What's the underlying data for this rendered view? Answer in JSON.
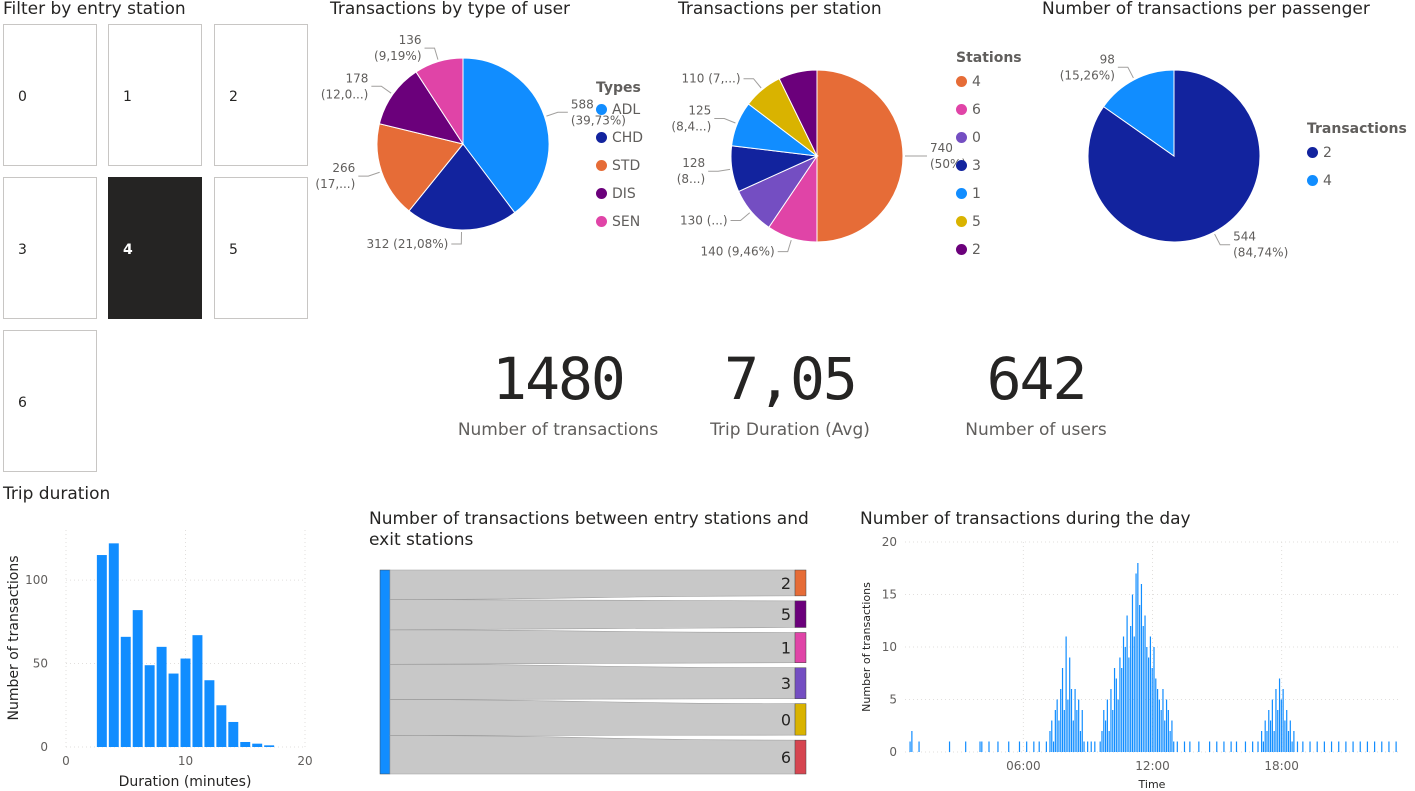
{
  "filter": {
    "title": "Filter by entry station",
    "tiles": [
      "0",
      "1",
      "2",
      "3",
      "4",
      "5",
      "6"
    ],
    "selected": "4"
  },
  "user_type_chart": {
    "title": "Transactions by type of user",
    "legend_title": "Types",
    "legend": [
      "ADL",
      "CHD",
      "STD",
      "DIS",
      "SEN"
    ],
    "slice_labels": [
      [
        "588",
        "(39,73%)"
      ],
      [
        "312 (21,08%)"
      ],
      [
        "266",
        "(17,...)"
      ],
      [
        "178",
        "(12,0...)"
      ],
      [
        "136",
        "(9,19%)"
      ]
    ]
  },
  "station_chart": {
    "title": "Transactions per station",
    "legend_title": "Stations",
    "legend": [
      "4",
      "6",
      "0",
      "3",
      "1",
      "5",
      "2"
    ],
    "slice_labels": [
      [
        "740",
        "(50%)"
      ],
      [
        "140 (9,46%)"
      ],
      [
        "130 (...)"
      ],
      [
        "128",
        "(8...)"
      ],
      [
        "125",
        "(8,4...)"
      ],
      [
        "110 (7,...)"
      ]
    ]
  },
  "passenger_chart": {
    "title": "Number of transactions per passenger",
    "legend_title": "Transactions",
    "legend": [
      "2",
      "4"
    ],
    "slice_labels": [
      [
        "544",
        "(84,74%)"
      ],
      [
        "98",
        "(15,26%)"
      ]
    ]
  },
  "kpis": [
    {
      "value": "1480",
      "label": "Number of transactions"
    },
    {
      "value": "7,05",
      "label": "Trip Duration (Avg)"
    },
    {
      "value": "642",
      "label": "Number of users"
    }
  ],
  "trip_chart": {
    "title": "Trip duration",
    "ylabel": "Number of transactions",
    "xlabel": "Duration (minutes)",
    "yticks": [
      "0",
      "50",
      "100"
    ],
    "xticks": [
      "0",
      "10",
      "20"
    ]
  },
  "sankey": {
    "title_line1": "Number of transactions between entry stations and",
    "title_line2": "exit stations",
    "source": "4",
    "targets": [
      "2",
      "5",
      "1",
      "3",
      "0",
      "6"
    ]
  },
  "day_chart": {
    "title": "Number of transactions during the day",
    "ylabel": "Number of transactions",
    "xlabel": "Time",
    "yticks": [
      "0",
      "5",
      "10",
      "15",
      "20"
    ],
    "xticks": [
      "06:00",
      "12:00",
      "18:00"
    ]
  },
  "colors": {
    "adl": "#118DFF",
    "chd": "#12239E",
    "std": "#E66C37",
    "dis": "#6B007B",
    "sen": "#E044A7",
    "st4": "#E66C37",
    "st6": "#E044A7",
    "st0": "#744EC2",
    "st3": "#12239E",
    "st1": "#118DFF",
    "st5": "#D9B300",
    "st2": "#6B007B",
    "bar": "#118DFF",
    "link": "#c8c8c8",
    "tile_selected": "#252423"
  },
  "chart_data": [
    {
      "type": "pie",
      "title": "Transactions by type of user",
      "categories": [
        "ADL",
        "CHD",
        "STD",
        "DIS",
        "SEN"
      ],
      "values": [
        588,
        312,
        266,
        178,
        136
      ]
    },
    {
      "type": "pie",
      "title": "Transactions per station",
      "categories": [
        "4",
        "6",
        "0",
        "3",
        "1",
        "5",
        "2"
      ],
      "values": [
        740,
        140,
        130,
        128,
        125,
        110,
        107
      ]
    },
    {
      "type": "pie",
      "title": "Number of transactions per passenger",
      "categories": [
        "2",
        "4"
      ],
      "values": [
        544,
        98
      ]
    },
    {
      "type": "bar",
      "title": "Trip duration",
      "xlabel": "Duration (minutes)",
      "ylabel": "Number of transactions",
      "x": [
        3,
        4,
        5,
        6,
        7,
        8,
        9,
        10,
        11,
        12,
        13,
        14,
        15,
        16,
        17
      ],
      "values": [
        115,
        122,
        66,
        82,
        49,
        60,
        44,
        53,
        67,
        40,
        25,
        15,
        3,
        2,
        1
      ],
      "xlim": [
        0,
        20
      ],
      "ylim": [
        0,
        130
      ]
    },
    {
      "type": "sankey",
      "title": "Number of transactions between entry stations and exit stations",
      "source": "4",
      "targets": [
        "2",
        "5",
        "1",
        "3",
        "0",
        "6"
      ],
      "values": [
        107,
        110,
        125,
        128,
        130,
        140
      ]
    },
    {
      "type": "bar",
      "title": "Number of transactions during the day",
      "xlabel": "Time",
      "ylabel": "Number of transactions",
      "ylim": [
        0,
        20
      ],
      "xlim": [
        "00:30",
        "23:30"
      ],
      "x": [
        "00:45",
        "00:50",
        "01:10",
        "02:35",
        "03:20",
        "04:00",
        "04:05",
        "04:25",
        "04:50",
        "05:20",
        "05:50",
        "06:10",
        "06:30",
        "06:45",
        "07:05",
        "07:15",
        "07:20",
        "07:25",
        "07:30",
        "07:35",
        "07:40",
        "07:45",
        "07:50",
        "07:55",
        "08:00",
        "08:05",
        "08:10",
        "08:15",
        "08:20",
        "08:25",
        "08:30",
        "08:35",
        "08:40",
        "08:45",
        "08:50",
        "09:00",
        "09:10",
        "09:20",
        "09:35",
        "09:40",
        "09:45",
        "09:50",
        "09:55",
        "10:00",
        "10:05",
        "10:10",
        "10:15",
        "10:20",
        "10:25",
        "10:30",
        "10:35",
        "10:40",
        "10:45",
        "10:50",
        "10:55",
        "11:00",
        "11:05",
        "11:10",
        "11:15",
        "11:20",
        "11:25",
        "11:30",
        "11:35",
        "11:40",
        "11:45",
        "11:50",
        "11:55",
        "12:00",
        "12:05",
        "12:10",
        "12:15",
        "12:20",
        "12:25",
        "12:30",
        "12:35",
        "12:40",
        "12:45",
        "12:50",
        "12:55",
        "13:00",
        "13:10",
        "13:30",
        "13:45",
        "14:10",
        "14:40",
        "15:00",
        "15:20",
        "15:40",
        "15:55",
        "16:20",
        "16:40",
        "16:55",
        "17:05",
        "17:10",
        "17:15",
        "17:20",
        "17:25",
        "17:30",
        "17:35",
        "17:40",
        "17:45",
        "17:50",
        "17:55",
        "18:00",
        "18:05",
        "18:10",
        "18:15",
        "18:20",
        "18:25",
        "18:30",
        "18:35",
        "18:45",
        "19:00",
        "19:20",
        "19:40",
        "20:00",
        "20:20",
        "20:40",
        "21:00",
        "21:20",
        "21:40",
        "22:00",
        "22:20",
        "22:40",
        "23:00",
        "23:20"
      ],
      "values": [
        1,
        2,
        1,
        1,
        1,
        1,
        1,
        1,
        1,
        1,
        1,
        1,
        1,
        1,
        1,
        2,
        3,
        1,
        4,
        5,
        3,
        6,
        8,
        4,
        11,
        5,
        9,
        6,
        3,
        6,
        4,
        5,
        2,
        4,
        1,
        1,
        1,
        1,
        1,
        2,
        4,
        3,
        5,
        2,
        6,
        4,
        8,
        7,
        5,
        9,
        8,
        11,
        10,
        13,
        9,
        12,
        15,
        11,
        17,
        18,
        14,
        16,
        12,
        13,
        10,
        9,
        11,
        8,
        10,
        7,
        6,
        5,
        4,
        6,
        3,
        5,
        4,
        2,
        3,
        1,
        1,
        1,
        1,
        1,
        1,
        1,
        1,
        1,
        1,
        1,
        1,
        1,
        2,
        1,
        3,
        2,
        4,
        3,
        5,
        2,
        6,
        4,
        7,
        5,
        6,
        3,
        4,
        2,
        3,
        1,
        2,
        1,
        1,
        1,
        1,
        1,
        1,
        1,
        1,
        1,
        1,
        1,
        1,
        1,
        1,
        1
      ]
    }
  ]
}
